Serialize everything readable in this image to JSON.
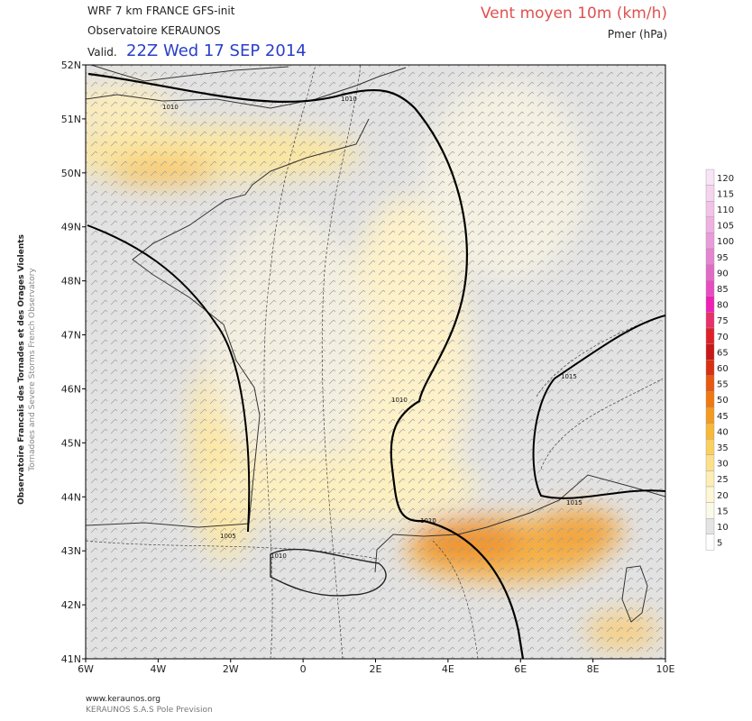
{
  "header": {
    "model": "WRF 7 km FRANCE   GFS-init",
    "source": "Observatoire KERAUNOS",
    "valid_prefix": "Valid.",
    "valid_time": "22Z Wed 17 SEP 2014",
    "field": "Vent moyen 10m (km/h)",
    "pressure": "Pmer (hPa)"
  },
  "side": {
    "line1": "Observatoire Francais des Tornades et des Orages Violents",
    "line2": "Tornadoes and Severe Storms French Observatory"
  },
  "map": {
    "lon_labels": [
      "6W",
      "4W",
      "2W",
      "0",
      "2E",
      "4E",
      "6E",
      "8E",
      "10E"
    ],
    "lat_labels": [
      "52N",
      "51N",
      "50N",
      "49N",
      "48N",
      "47N",
      "46N",
      "45N",
      "44N",
      "43N",
      "42N",
      "41N"
    ],
    "isobar_labels": [
      "1010",
      "1010",
      "1010",
      "1010",
      "1005",
      "1010",
      "1015",
      "1015"
    ]
  },
  "colorbar": {
    "levels": [
      {
        "label": "120",
        "color": "#f8e4f4"
      },
      {
        "label": "115",
        "color": "#f6d4ee"
      },
      {
        "label": "110",
        "color": "#f3c2e8"
      },
      {
        "label": "105",
        "color": "#efb0e2"
      },
      {
        "label": "100",
        "color": "#ea9cda"
      },
      {
        "label": "95",
        "color": "#e584d0"
      },
      {
        "label": "90",
        "color": "#e06cc6"
      },
      {
        "label": "85",
        "color": "#e84cc0"
      },
      {
        "label": "80",
        "color": "#f020b4"
      },
      {
        "label": "75",
        "color": "#e8306a"
      },
      {
        "label": "70",
        "color": "#e02028"
      },
      {
        "label": "65",
        "color": "#c81818"
      },
      {
        "label": "60",
        "color": "#d83010"
      },
      {
        "label": "55",
        "color": "#e85810"
      },
      {
        "label": "50",
        "color": "#f07810"
      },
      {
        "label": "45",
        "color": "#f49a20"
      },
      {
        "label": "40",
        "color": "#f8b838"
      },
      {
        "label": "35",
        "color": "#fad060"
      },
      {
        "label": "30",
        "color": "#fce08a"
      },
      {
        "label": "25",
        "color": "#fdeeb4"
      },
      {
        "label": "20",
        "color": "#fef6d4"
      },
      {
        "label": "15",
        "color": "#fbfae8"
      },
      {
        "label": "10",
        "color": "#e4e4e4"
      },
      {
        "label": "5",
        "color": "#ffffff"
      }
    ]
  },
  "footer": {
    "url": "www.keraunos.org",
    "company": "KERAUNOS S.A.S Pole Prevision"
  }
}
